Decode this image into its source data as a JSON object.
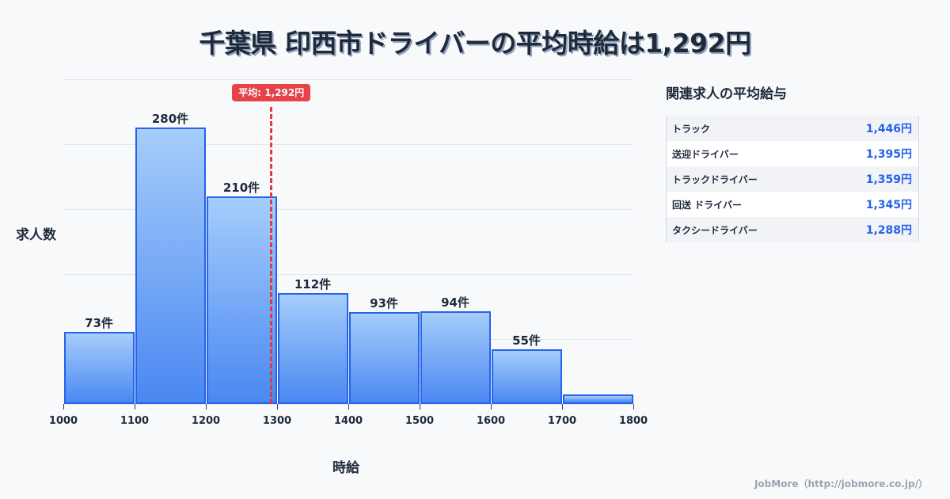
{
  "title": "千葉県 印西市ドライバーの平均時給は1,292円",
  "chart_data": {
    "type": "bar",
    "title": "千葉県 印西市ドライバーの平均時給は1,292円",
    "xlabel": "時給",
    "ylabel": "求人数",
    "bin_edges": [
      1000,
      1100,
      1200,
      1300,
      1400,
      1500,
      1600,
      1700,
      1800
    ],
    "categories": [
      "1000-1100",
      "1100-1200",
      "1200-1300",
      "1300-1400",
      "1400-1500",
      "1500-1600",
      "1600-1700",
      "1700-1800"
    ],
    "values": [
      73,
      280,
      210,
      112,
      93,
      94,
      55,
      10
    ],
    "bar_labels": [
      "73件",
      "280件",
      "210件",
      "112件",
      "93件",
      "94件",
      "55件",
      ""
    ],
    "x_ticks": [
      "1000",
      "1100",
      "1200",
      "1300",
      "1400",
      "1500",
      "1600",
      "1700",
      "1800"
    ],
    "ylim": [
      0,
      329
    ],
    "grid": true,
    "average": {
      "value": 1292,
      "label": "平均: 1,292円"
    }
  },
  "sidebar": {
    "title": "関連求人の平均給与",
    "rows": [
      {
        "name": "トラック",
        "value": "1,446円"
      },
      {
        "name": "送迎ドライバー",
        "value": "1,395円"
      },
      {
        "name": "トラックドライバー",
        "value": "1,359円"
      },
      {
        "name": "回送 ドライバー",
        "value": "1,345円"
      },
      {
        "name": "タクシードライバー",
        "value": "1,288円"
      }
    ]
  },
  "footer": "JobMore（http://jobmore.co.jp/）",
  "colors": {
    "bar_border": "#2563eb",
    "bar_top": "#a6cdfb",
    "bar_bottom": "#4a88f1",
    "average_line": "#e5393e",
    "value_text": "#2563eb"
  }
}
